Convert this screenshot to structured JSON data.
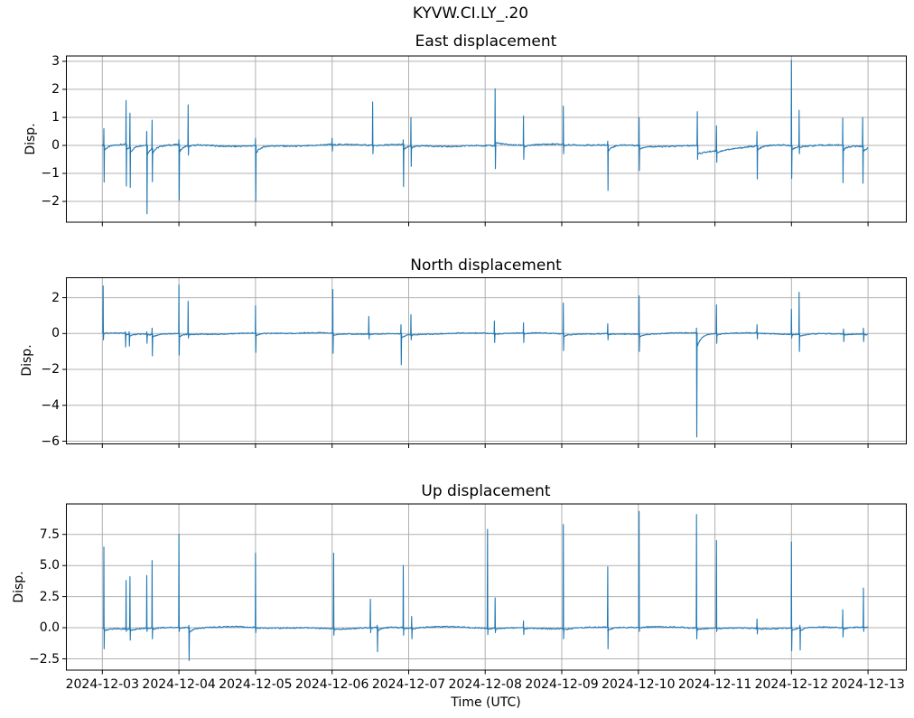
{
  "figure": {
    "suptitle": "KYVW.CI.LY_.20",
    "background": "#ffffff",
    "line_color": "#1f77b4",
    "grid_color": "#b0b0b0",
    "spine_color": "#000000",
    "text_color": "#000000"
  },
  "x_axis": {
    "label": "Time (UTC)",
    "xlim_days": [
      -0.47,
      10.5
    ],
    "start_date": "2024-12-03",
    "end_date": "2024-12-13",
    "ticks": [
      {
        "t": 0,
        "label": "2024-12-03"
      },
      {
        "t": 1,
        "label": "2024-12-04"
      },
      {
        "t": 2,
        "label": "2024-12-05"
      },
      {
        "t": 3,
        "label": "2024-12-06"
      },
      {
        "t": 4,
        "label": "2024-12-07"
      },
      {
        "t": 5,
        "label": "2024-12-08"
      },
      {
        "t": 6,
        "label": "2024-12-09"
      },
      {
        "t": 7,
        "label": "2024-12-10"
      },
      {
        "t": 8,
        "label": "2024-12-11"
      },
      {
        "t": 9,
        "label": "2024-12-12"
      },
      {
        "t": 10,
        "label": "2024-12-13"
      }
    ]
  },
  "chart_data": [
    {
      "type": "line",
      "title": "East displacement",
      "ylabel": "Disp.",
      "ylim": [
        -2.74,
        3.19
      ],
      "yticks": [
        3,
        2,
        1,
        0,
        -1,
        -2
      ],
      "ytick_labels": [
        "3",
        "2",
        "1",
        "0",
        "−1",
        "−2"
      ],
      "grid": true,
      "baseline": 0,
      "noise_amp": 0.045,
      "spikes_t_up_down": [
        [
          0.02,
          0.6,
          -1.31
        ],
        [
          0.31,
          1.6,
          -1.45
        ],
        [
          0.36,
          1.15,
          -1.5
        ],
        [
          0.58,
          0.5,
          -2.44
        ],
        [
          0.65,
          0.9,
          -1.3
        ],
        [
          1.0,
          0.2,
          -1.96
        ],
        [
          1.12,
          1.45,
          -0.35
        ],
        [
          2.0,
          0.25,
          -2.0
        ],
        [
          3.0,
          0.25,
          -0.2
        ],
        [
          3.53,
          1.55,
          -0.3
        ],
        [
          3.93,
          0.2,
          -1.47
        ],
        [
          4.03,
          1.0,
          -0.75
        ],
        [
          5.13,
          2.02,
          -0.83,
          0.12,
          0.2
        ],
        [
          5.5,
          1.05,
          -0.5
        ],
        [
          6.02,
          1.4,
          -0.3
        ],
        [
          6.6,
          0.15,
          -1.61
        ],
        [
          7.01,
          1.0,
          -0.9
        ],
        [
          7.77,
          1.2,
          -0.5,
          -0.3,
          0.45
        ],
        [
          8.02,
          0.7,
          -0.6
        ],
        [
          8.55,
          0.5,
          -1.2
        ],
        [
          9.0,
          3.04,
          -1.18
        ],
        [
          9.1,
          1.25,
          -0.3
        ],
        [
          9.67,
          0.97,
          -1.33
        ],
        [
          9.93,
          1.0,
          -1.35
        ]
      ]
    },
    {
      "type": "line",
      "title": "North displacement",
      "ylabel": "Disp.",
      "ylim": [
        -6.15,
        3.11
      ],
      "yticks": [
        2,
        0,
        -2,
        -4,
        -6
      ],
      "ytick_labels": [
        "2",
        "0",
        "−2",
        "−4",
        "−6"
      ],
      "grid": true,
      "baseline": 0,
      "noise_amp": 0.05,
      "spikes_t_up_down": [
        [
          0.01,
          2.65,
          -0.35
        ],
        [
          0.3,
          0.1,
          -0.75
        ],
        [
          0.35,
          0.1,
          -0.7
        ],
        [
          0.58,
          0.1,
          -0.55
        ],
        [
          0.65,
          0.3,
          -1.25
        ],
        [
          1.0,
          2.7,
          -1.2
        ],
        [
          1.12,
          1.8,
          -0.25
        ],
        [
          2.0,
          1.55,
          -1.05
        ],
        [
          3.01,
          2.45,
          -1.1
        ],
        [
          3.48,
          0.95,
          -0.3
        ],
        [
          3.9,
          0.5,
          -1.74
        ],
        [
          4.03,
          1.05,
          -0.35
        ],
        [
          5.12,
          0.7,
          -0.5
        ],
        [
          5.5,
          0.6,
          -0.5
        ],
        [
          6.02,
          1.7,
          -0.95
        ],
        [
          6.6,
          0.55,
          -0.35
        ],
        [
          7.01,
          2.1,
          -1.0
        ],
        [
          7.76,
          0.3,
          -5.76
        ],
        [
          8.02,
          1.6,
          -0.55
        ],
        [
          8.55,
          0.5,
          -0.3
        ],
        [
          9.0,
          1.35,
          -0.25
        ],
        [
          9.1,
          2.3,
          -1.0
        ],
        [
          9.68,
          0.25,
          -0.45
        ],
        [
          9.94,
          0.3,
          -0.45
        ]
      ]
    },
    {
      "type": "line",
      "title": "Up displacement",
      "ylabel": "Disp.",
      "ylim": [
        -3.41,
        9.95
      ],
      "yticks": [
        7.5,
        5.0,
        2.5,
        0.0,
        -2.5
      ],
      "ytick_labels": [
        "7.5",
        "5.0",
        "2.5",
        "0.0",
        "−2.5"
      ],
      "grid": true,
      "baseline": 0,
      "noise_amp": 0.09,
      "spikes_t_up_down": [
        [
          0.02,
          6.5,
          -1.7
        ],
        [
          0.31,
          3.8,
          -0.3
        ],
        [
          0.36,
          4.1,
          -1.0
        ],
        [
          0.58,
          4.2,
          -0.3
        ],
        [
          0.65,
          5.4,
          -0.9
        ],
        [
          1.0,
          7.5,
          -0.3
        ],
        [
          1.13,
          0.2,
          -2.65
        ],
        [
          2.0,
          6.0,
          -0.4
        ],
        [
          3.02,
          6.0,
          -0.6
        ],
        [
          3.5,
          2.3,
          -0.4
        ],
        [
          3.59,
          0.2,
          -1.93
        ],
        [
          3.93,
          5.0,
          -0.6
        ],
        [
          4.04,
          0.9,
          -0.9
        ],
        [
          5.03,
          7.9,
          -0.55
        ],
        [
          5.13,
          2.4,
          -0.4
        ],
        [
          5.5,
          0.55,
          -0.55
        ],
        [
          6.02,
          8.3,
          -0.9
        ],
        [
          6.6,
          4.9,
          -1.7
        ],
        [
          7.01,
          9.35,
          -0.3
        ],
        [
          7.76,
          9.1,
          -0.9
        ],
        [
          8.02,
          7.0,
          -0.3
        ],
        [
          8.55,
          0.7,
          -0.5
        ],
        [
          9.0,
          6.9,
          -1.85
        ],
        [
          9.11,
          0.2,
          -1.8
        ],
        [
          9.67,
          1.45,
          -0.75
        ],
        [
          9.94,
          3.2,
          -0.3
        ]
      ]
    }
  ]
}
